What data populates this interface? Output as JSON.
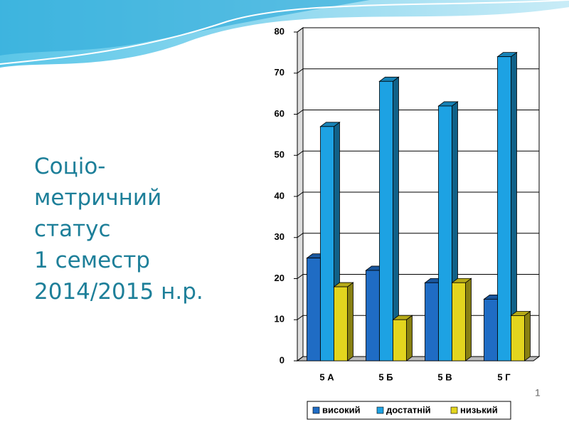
{
  "chart_data": {
    "type": "bar3d",
    "title": "Соціо-метричний статус",
    "subtitle": "1 семестр 2014/2015 н.р.",
    "slide_number": "1",
    "categories": [
      "5 А",
      "5 Б",
      "5 В",
      "5 Г"
    ],
    "series": [
      {
        "name": "високий",
        "color": "#1f6cc4",
        "values": [
          25,
          22,
          19,
          15
        ]
      },
      {
        "name": "достатній",
        "color": "#1da2e3",
        "values": [
          57,
          68,
          62,
          74
        ]
      },
      {
        "name": "низький",
        "color": "#e3d51e",
        "values": [
          18,
          10,
          19,
          11
        ]
      }
    ],
    "ylim": [
      0,
      80
    ],
    "yticks": [
      0,
      10,
      20,
      30,
      40,
      50,
      60,
      70,
      80
    ],
    "grid": true,
    "legend": "bottom"
  }
}
